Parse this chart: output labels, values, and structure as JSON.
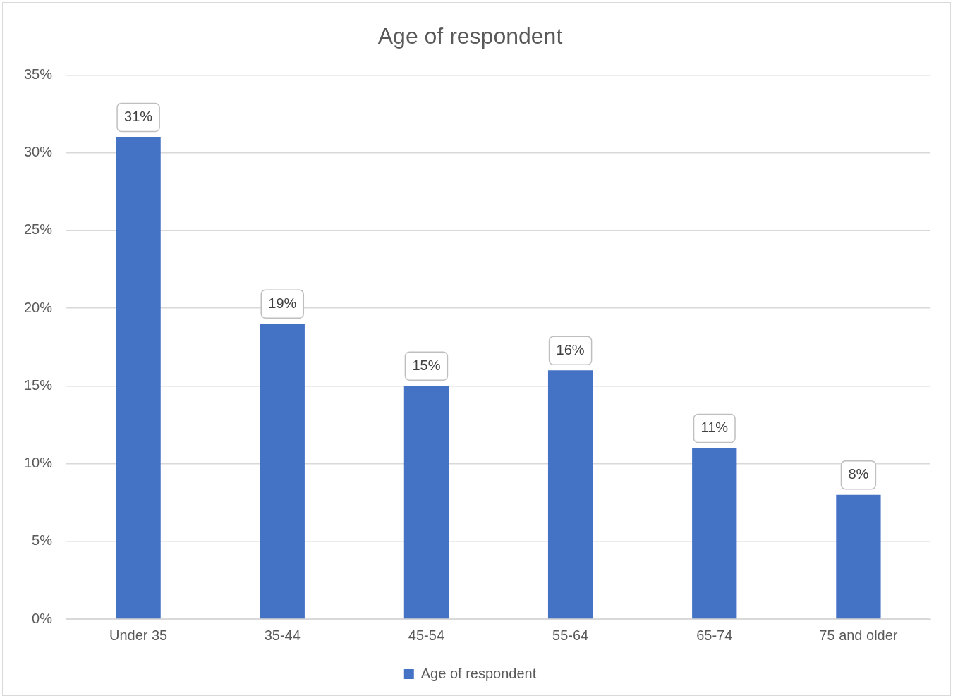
{
  "chart_data": {
    "type": "bar",
    "title": "Age of respondent",
    "categories": [
      "Under 35",
      "35-44",
      "45-54",
      "55-64",
      "65-74",
      "75 and older"
    ],
    "series": [
      {
        "name": "Age of respondent",
        "color": "#4472c4",
        "values": [
          31,
          19,
          15,
          16,
          11,
          8
        ],
        "value_labels": [
          "31%",
          "19%",
          "15%",
          "16%",
          "11%",
          "8%"
        ]
      }
    ],
    "ylim": [
      0,
      35
    ],
    "yticks": [
      {
        "value": 0,
        "label": "0%"
      },
      {
        "value": 5,
        "label": "5%"
      },
      {
        "value": 10,
        "label": "10%"
      },
      {
        "value": 15,
        "label": "15%"
      },
      {
        "value": 20,
        "label": "20%"
      },
      {
        "value": 25,
        "label": "25%"
      },
      {
        "value": 30,
        "label": "30%"
      },
      {
        "value": 35,
        "label": "35%"
      }
    ],
    "grid": "y",
    "legend": "bottom"
  }
}
